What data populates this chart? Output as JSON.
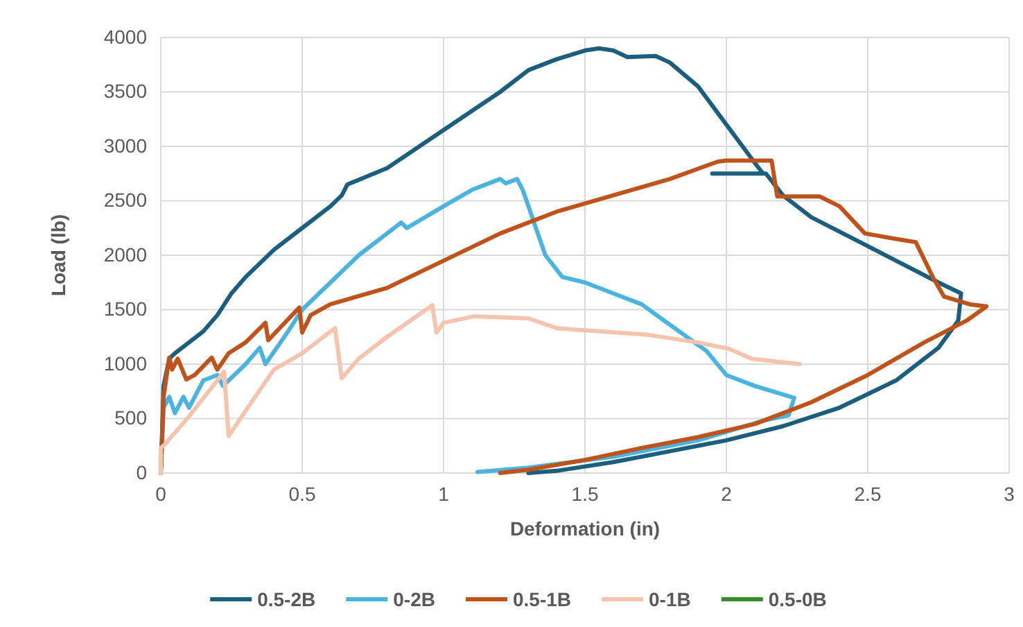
{
  "chart_data": {
    "type": "line",
    "xlabel": "Deformation (in)",
    "ylabel": "Load (lb)",
    "xlim": [
      0,
      3
    ],
    "ylim": [
      0,
      4000
    ],
    "xticks": [
      0,
      0.5,
      1,
      1.5,
      2,
      2.5,
      3
    ],
    "yticks": [
      0,
      500,
      1000,
      1500,
      2000,
      2500,
      3000,
      3500,
      4000
    ],
    "grid": true,
    "legend": "bottom",
    "marker": "none",
    "line_style": "solid",
    "series": [
      {
        "name": "0.5-2B",
        "color": "#1b5e7e",
        "x": [
          0,
          0.01,
          0.03,
          0.05,
          0.1,
          0.15,
          0.2,
          0.25,
          0.3,
          0.4,
          0.5,
          0.6,
          0.64,
          0.66,
          0.8,
          1.0,
          1.2,
          1.3,
          1.4,
          1.5,
          1.55,
          1.6,
          1.65,
          1.75,
          1.8,
          1.9,
          2.0,
          2.1,
          2.13,
          1.95,
          2.14,
          2.2,
          2.3,
          2.45,
          2.6,
          2.75,
          2.83,
          2.82,
          2.75,
          2.6,
          2.4,
          2.2,
          2.0,
          1.8,
          1.6,
          1.4,
          1.3
        ],
        "values": [
          0,
          800,
          1050,
          1100,
          1200,
          1300,
          1450,
          1650,
          1800,
          2050,
          2250,
          2450,
          2550,
          2650,
          2800,
          3150,
          3500,
          3700,
          3800,
          3880,
          3900,
          3880,
          3820,
          3830,
          3770,
          3550,
          3200,
          2850,
          2750,
          2750,
          2750,
          2550,
          2350,
          2150,
          1950,
          1750,
          1650,
          1400,
          1150,
          850,
          600,
          430,
          300,
          200,
          100,
          20,
          0
        ]
      },
      {
        "name": "0-2B",
        "color": "#4ab3e0",
        "x": [
          0,
          0.01,
          0.03,
          0.05,
          0.08,
          0.1,
          0.15,
          0.2,
          0.22,
          0.3,
          0.35,
          0.37,
          0.45,
          0.5,
          0.6,
          0.7,
          0.8,
          0.85,
          0.87,
          1.0,
          1.1,
          1.2,
          1.22,
          1.26,
          1.28,
          1.32,
          1.36,
          1.42,
          1.5,
          1.6,
          1.7,
          1.78,
          1.93,
          2.0,
          2.1,
          2.24,
          2.22,
          2.13,
          1.9,
          1.6,
          1.3,
          1.12
        ],
        "values": [
          0,
          600,
          700,
          550,
          700,
          600,
          850,
          900,
          800,
          1000,
          1150,
          1000,
          1300,
          1500,
          1750,
          2000,
          2200,
          2300,
          2250,
          2450,
          2600,
          2700,
          2660,
          2700,
          2600,
          2300,
          2000,
          1800,
          1750,
          1650,
          1550,
          1400,
          1120,
          900,
          800,
          690,
          530,
          480,
          300,
          150,
          50,
          10
        ]
      },
      {
        "name": "0.5-1B",
        "color": "#c0531a",
        "x": [
          0,
          0.01,
          0.03,
          0.04,
          0.06,
          0.09,
          0.12,
          0.18,
          0.2,
          0.24,
          0.3,
          0.37,
          0.38,
          0.42,
          0.49,
          0.5,
          0.53,
          0.6,
          0.8,
          1.0,
          1.2,
          1.4,
          1.6,
          1.8,
          1.97,
          2.0,
          2.16,
          2.18,
          2.33,
          2.4,
          2.49,
          2.6,
          2.67,
          2.73,
          2.77,
          2.86,
          2.92,
          2.85,
          2.7,
          2.5,
          2.3,
          2.1,
          1.9,
          1.7,
          1.5,
          1.3,
          1.2
        ],
        "values": [
          0,
          700,
          1060,
          950,
          1050,
          860,
          900,
          1060,
          950,
          1100,
          1200,
          1380,
          1220,
          1330,
          1520,
          1290,
          1450,
          1550,
          1700,
          1950,
          2200,
          2400,
          2550,
          2700,
          2860,
          2870,
          2870,
          2540,
          2540,
          2450,
          2200,
          2150,
          2120,
          1800,
          1620,
          1550,
          1530,
          1400,
          1200,
          900,
          650,
          450,
          330,
          230,
          120,
          30,
          0
        ]
      },
      {
        "name": "0-1B",
        "color": "#f4c4ae",
        "x": [
          0,
          0,
          0.01,
          0.1,
          0.224,
          0.24,
          0.31,
          0.4,
          0.5,
          0.616,
          0.64,
          0.7,
          0.8,
          0.96,
          0.975,
          1.0,
          1.11,
          1.3,
          1.4,
          1.5,
          1.72,
          1.9,
          2.01,
          2.09,
          2.26
        ],
        "values": [
          0,
          230,
          250,
          520,
          930,
          340,
          610,
          950,
          1100,
          1330,
          870,
          1050,
          1250,
          1540,
          1290,
          1380,
          1440,
          1420,
          1330,
          1310,
          1270,
          1200,
          1140,
          1050,
          1000
        ]
      },
      {
        "name": "0.5-0B",
        "color": "#3a8a2e"
      }
    ]
  }
}
